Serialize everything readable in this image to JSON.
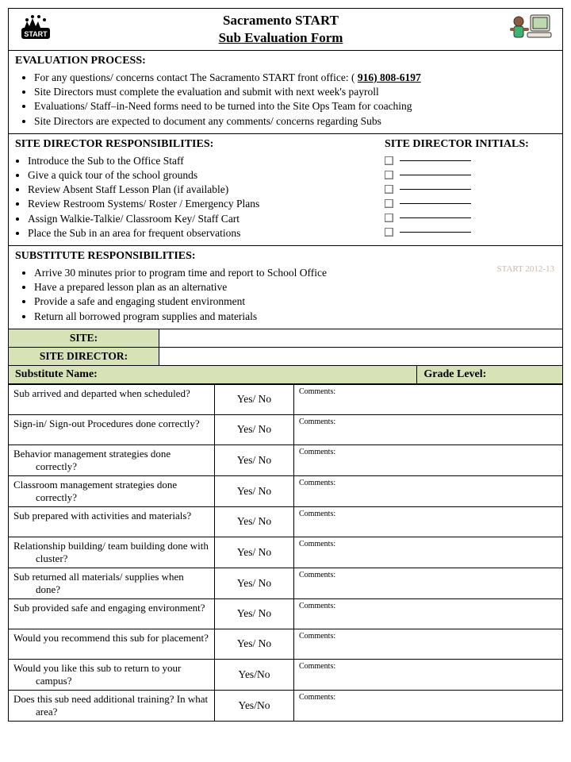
{
  "header": {
    "line1": "Sacramento START",
    "line2": "Sub Evaluation Form",
    "logo_left_text": "START"
  },
  "process": {
    "title": "EVALUATION PROCESS:",
    "items": [
      "For any questions/ concerns contact The Sacramento START front office: ( ",
      "Site Directors must complete the evaluation and submit with next week's payroll",
      "Evaluations/ Staff–in-Need forms need to be turned into the Site Ops Team for coaching",
      "Site Directors are expected to document any comments/ concerns regarding Subs"
    ],
    "phone": "916) 808-6197"
  },
  "responsibilities": {
    "title": "SITE DIRECTOR RESPONSIBILITIES:",
    "items": [
      "Introduce the Sub to the Office Staff",
      "Give a quick tour of the school grounds",
      "Review Absent Staff Lesson Plan (if available)",
      "Review Restroom Systems/ Roster / Emergency Plans",
      "Assign Walkie-Talkie/ Classroom Key/ Staff Cart",
      "Place the Sub in an area for frequent observations"
    ],
    "initials_title": "SITE DIRECTOR INITIALS:",
    "initials_count": 6
  },
  "sub_resp": {
    "title": "SUBSTITUTE RESPONSIBILITIES:",
    "items": [
      "Arrive 30 minutes prior to program time and report to School Office",
      "Have a prepared lesson plan as an alternative",
      "Provide a safe and engaging student environment",
      "Return all borrowed program supplies and materials"
    ],
    "watermark": "START 2012-13"
  },
  "info": {
    "site_label": "SITE:",
    "director_label": "SITE DIRECTOR:",
    "sub_name_label": "Substitute Name:",
    "grade_label": "Grade Level:"
  },
  "eval": {
    "yn": "Yes/ No",
    "yn2": "Yes/No",
    "comments": "Comments:",
    "questions": [
      "Sub arrived and departed when scheduled?",
      "Sign-in/ Sign-out Procedures done correctly?",
      "Behavior management strategies done correctly?",
      "Classroom management strategies done correctly?",
      "Sub prepared with activities and materials?",
      "Relationship building/ team building done with cluster?",
      "Sub returned all materials/ supplies when done?",
      "Sub provided safe and engaging environment?",
      "Would you recommend this sub for placement?",
      "Would you like this sub to return to your campus?",
      "Does this sub need additional training? In what area?"
    ]
  },
  "colors": {
    "green": "#d7e2b7",
    "watermark": "#c9b9a3"
  }
}
